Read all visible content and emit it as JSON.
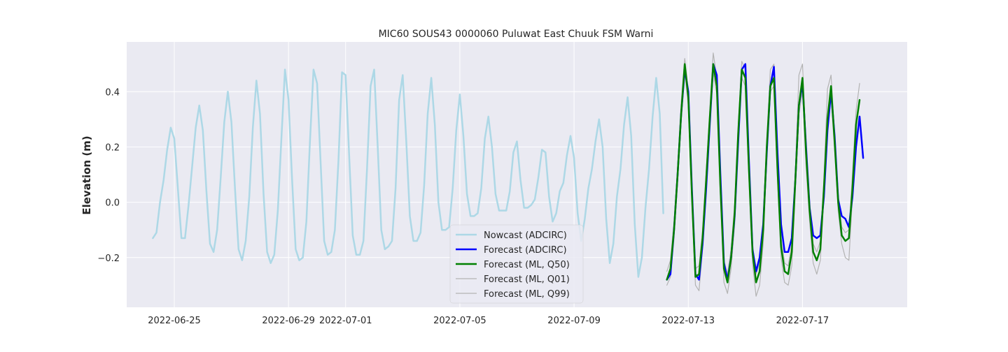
{
  "chart_data": {
    "type": "line",
    "title": "MIC60 SOUS43 0000060 Puluwat East Chuuk FSM Warni",
    "xlabel": "",
    "ylabel": "Elevation (m)",
    "x_unit": "date",
    "xlim": [
      "2022-06-23T08:00",
      "2022-07-20T16:00"
    ],
    "ylim": [
      -0.38,
      0.58
    ],
    "yticks": [
      -0.2,
      0.0,
      0.2,
      0.4
    ],
    "ytick_labels": [
      "−0.2",
      "0.0",
      "0.2",
      "0.4"
    ],
    "xticks": [
      "2022-06-25",
      "2022-06-29",
      "2022-07-01",
      "2022-07-05",
      "2022-07-09",
      "2022-07-13",
      "2022-07-17"
    ],
    "grid": true,
    "background": "#eaeaf2",
    "legend_position": "lower-center",
    "series": [
      {
        "name": "Nowcast (ADCIRC)",
        "color": "#add8e6",
        "width": 2.5,
        "x": [
          "2022-06-24T06:00",
          "2022-06-24T09:00",
          "2022-06-24T12:00",
          "2022-06-24T15:00",
          "2022-06-24T18:00",
          "2022-06-24T21:00",
          "2022-06-25T00:00",
          "2022-06-25T03:00",
          "2022-06-25T06:00",
          "2022-06-25T09:00",
          "2022-06-25T12:00",
          "2022-06-25T15:00",
          "2022-06-25T18:00",
          "2022-06-25T21:00",
          "2022-06-26T00:00",
          "2022-06-26T03:00",
          "2022-06-26T06:00",
          "2022-06-26T09:00",
          "2022-06-26T12:00",
          "2022-06-26T15:00",
          "2022-06-26T18:00",
          "2022-06-26T21:00",
          "2022-06-27T00:00",
          "2022-06-27T03:00",
          "2022-06-27T06:00",
          "2022-06-27T09:00",
          "2022-06-27T12:00",
          "2022-06-27T15:00",
          "2022-06-27T18:00",
          "2022-06-27T21:00",
          "2022-06-28T00:00",
          "2022-06-28T03:00",
          "2022-06-28T06:00",
          "2022-06-28T09:00",
          "2022-06-28T12:00",
          "2022-06-28T15:00",
          "2022-06-28T18:00",
          "2022-06-28T21:00",
          "2022-06-29T00:00",
          "2022-06-29T03:00",
          "2022-06-29T06:00",
          "2022-06-29T09:00",
          "2022-06-29T12:00",
          "2022-06-29T15:00",
          "2022-06-29T18:00",
          "2022-06-29T21:00",
          "2022-06-30T00:00",
          "2022-06-30T03:00",
          "2022-06-30T06:00",
          "2022-06-30T09:00",
          "2022-06-30T12:00",
          "2022-06-30T15:00",
          "2022-06-30T18:00",
          "2022-06-30T21:00",
          "2022-07-01T00:00",
          "2022-07-01T03:00",
          "2022-07-01T06:00",
          "2022-07-01T09:00",
          "2022-07-01T12:00",
          "2022-07-01T15:00",
          "2022-07-01T18:00",
          "2022-07-01T21:00",
          "2022-07-02T00:00",
          "2022-07-02T03:00",
          "2022-07-02T06:00",
          "2022-07-02T09:00",
          "2022-07-02T12:00",
          "2022-07-02T15:00",
          "2022-07-02T18:00",
          "2022-07-02T21:00",
          "2022-07-03T00:00",
          "2022-07-03T03:00",
          "2022-07-03T06:00",
          "2022-07-03T09:00",
          "2022-07-03T12:00",
          "2022-07-03T15:00",
          "2022-07-03T18:00",
          "2022-07-03T21:00",
          "2022-07-04T00:00",
          "2022-07-04T03:00",
          "2022-07-04T06:00",
          "2022-07-04T09:00",
          "2022-07-04T12:00",
          "2022-07-04T15:00",
          "2022-07-04T18:00",
          "2022-07-04T21:00",
          "2022-07-05T00:00",
          "2022-07-05T03:00",
          "2022-07-05T06:00",
          "2022-07-05T09:00",
          "2022-07-05T12:00",
          "2022-07-05T15:00",
          "2022-07-05T18:00",
          "2022-07-05T21:00",
          "2022-07-06T00:00",
          "2022-07-06T03:00",
          "2022-07-06T06:00",
          "2022-07-06T09:00",
          "2022-07-06T12:00",
          "2022-07-06T15:00",
          "2022-07-06T18:00",
          "2022-07-06T21:00",
          "2022-07-07T00:00",
          "2022-07-07T03:00",
          "2022-07-07T06:00",
          "2022-07-07T09:00",
          "2022-07-07T12:00",
          "2022-07-07T15:00",
          "2022-07-07T18:00",
          "2022-07-07T21:00",
          "2022-07-08T00:00",
          "2022-07-08T03:00",
          "2022-07-08T06:00",
          "2022-07-08T09:00",
          "2022-07-08T12:00",
          "2022-07-08T15:00",
          "2022-07-08T18:00",
          "2022-07-08T21:00",
          "2022-07-09T00:00",
          "2022-07-09T03:00",
          "2022-07-09T06:00",
          "2022-07-09T09:00",
          "2022-07-09T12:00",
          "2022-07-09T15:00",
          "2022-07-09T18:00",
          "2022-07-09T21:00",
          "2022-07-10T00:00",
          "2022-07-10T03:00",
          "2022-07-10T06:00",
          "2022-07-10T09:00",
          "2022-07-10T12:00",
          "2022-07-10T15:00",
          "2022-07-10T18:00",
          "2022-07-10T21:00",
          "2022-07-11T00:00",
          "2022-07-11T03:00",
          "2022-07-11T06:00",
          "2022-07-11T09:00",
          "2022-07-11T12:00",
          "2022-07-11T15:00",
          "2022-07-11T18:00",
          "2022-07-11T21:00",
          "2022-07-12T00:00",
          "2022-07-12T03:00"
        ],
        "y": [
          -0.13,
          -0.11,
          0.0,
          0.08,
          0.19,
          0.27,
          0.23,
          0.05,
          -0.13,
          -0.13,
          -0.01,
          0.13,
          0.27,
          0.35,
          0.26,
          0.04,
          -0.15,
          -0.18,
          -0.1,
          0.09,
          0.29,
          0.4,
          0.29,
          0.05,
          -0.17,
          -0.21,
          -0.14,
          0.02,
          0.27,
          0.44,
          0.32,
          0.03,
          -0.18,
          -0.22,
          -0.19,
          -0.03,
          0.23,
          0.48,
          0.37,
          0.08,
          -0.17,
          -0.21,
          -0.2,
          -0.07,
          0.22,
          0.48,
          0.43,
          0.14,
          -0.14,
          -0.19,
          -0.18,
          -0.1,
          0.15,
          0.47,
          0.46,
          0.17,
          -0.12,
          -0.19,
          -0.19,
          -0.14,
          0.12,
          0.42,
          0.48,
          0.2,
          -0.1,
          -0.17,
          -0.16,
          -0.14,
          0.05,
          0.37,
          0.46,
          0.22,
          -0.05,
          -0.14,
          -0.14,
          -0.11,
          0.06,
          0.32,
          0.45,
          0.28,
          0.0,
          -0.1,
          -0.1,
          -0.09,
          0.05,
          0.26,
          0.39,
          0.24,
          0.03,
          -0.05,
          -0.05,
          -0.04,
          0.05,
          0.23,
          0.31,
          0.2,
          0.03,
          -0.03,
          -0.03,
          -0.03,
          0.04,
          0.18,
          0.22,
          0.08,
          -0.02,
          -0.02,
          -0.01,
          0.01,
          0.09,
          0.19,
          0.18,
          0.02,
          -0.07,
          -0.04,
          0.04,
          0.07,
          0.17,
          0.24,
          0.16,
          -0.04,
          -0.14,
          -0.06,
          0.05,
          0.12,
          0.22,
          0.3,
          0.2,
          -0.06,
          -0.22,
          -0.15,
          0.02,
          0.12,
          0.28,
          0.38,
          0.24,
          -0.08,
          -0.27,
          -0.2,
          -0.02,
          0.12,
          0.31,
          0.45,
          0.32,
          -0.04
        ]
      },
      {
        "name": "Forecast (ADCIRC)",
        "color": "#0000ff",
        "width": 2.5,
        "x": [
          "2022-07-12T06:00",
          "2022-07-12T09:00",
          "2022-07-12T12:00",
          "2022-07-12T15:00",
          "2022-07-12T18:00",
          "2022-07-12T21:00",
          "2022-07-13T00:00",
          "2022-07-13T03:00",
          "2022-07-13T06:00",
          "2022-07-13T09:00",
          "2022-07-13T12:00",
          "2022-07-13T15:00",
          "2022-07-13T18:00",
          "2022-07-13T21:00",
          "2022-07-14T00:00",
          "2022-07-14T03:00",
          "2022-07-14T06:00",
          "2022-07-14T09:00",
          "2022-07-14T12:00",
          "2022-07-14T15:00",
          "2022-07-14T18:00",
          "2022-07-14T21:00",
          "2022-07-15T00:00",
          "2022-07-15T03:00",
          "2022-07-15T06:00",
          "2022-07-15T09:00",
          "2022-07-15T12:00",
          "2022-07-15T15:00",
          "2022-07-15T18:00",
          "2022-07-15T21:00",
          "2022-07-16T00:00",
          "2022-07-16T03:00",
          "2022-07-16T06:00",
          "2022-07-16T09:00",
          "2022-07-16T12:00",
          "2022-07-16T15:00",
          "2022-07-16T18:00",
          "2022-07-16T21:00",
          "2022-07-17T00:00",
          "2022-07-17T03:00",
          "2022-07-17T06:00",
          "2022-07-17T09:00",
          "2022-07-17T12:00",
          "2022-07-17T15:00",
          "2022-07-17T18:00",
          "2022-07-17T21:00",
          "2022-07-18T00:00",
          "2022-07-18T03:00",
          "2022-07-18T06:00",
          "2022-07-18T09:00",
          "2022-07-18T12:00",
          "2022-07-18T15:00",
          "2022-07-18T18:00",
          "2022-07-18T21:00",
          "2022-07-19T00:00",
          "2022-07-19T03:00"
        ],
        "y": [
          -0.28,
          -0.26,
          -0.1,
          0.1,
          0.32,
          0.48,
          0.4,
          0.05,
          -0.26,
          -0.28,
          -0.15,
          0.05,
          0.28,
          0.5,
          0.46,
          0.1,
          -0.22,
          -0.28,
          -0.2,
          -0.05,
          0.22,
          0.48,
          0.5,
          0.15,
          -0.17,
          -0.25,
          -0.2,
          -0.08,
          0.18,
          0.42,
          0.49,
          0.18,
          -0.08,
          -0.18,
          -0.18,
          -0.13,
          0.08,
          0.35,
          0.43,
          0.2,
          -0.02,
          -0.12,
          -0.13,
          -0.12,
          0.02,
          0.26,
          0.4,
          0.24,
          0.01,
          -0.05,
          -0.06,
          -0.09,
          0.02,
          0.2,
          0.31,
          0.16
        ]
      },
      {
        "name": "Forecast (ML, Q50)",
        "color": "#008000",
        "width": 2.5,
        "x": [
          "2022-07-12T06:00",
          "2022-07-12T09:00",
          "2022-07-12T12:00",
          "2022-07-12T15:00",
          "2022-07-12T18:00",
          "2022-07-12T21:00",
          "2022-07-13T00:00",
          "2022-07-13T03:00",
          "2022-07-13T06:00",
          "2022-07-13T09:00",
          "2022-07-13T12:00",
          "2022-07-13T15:00",
          "2022-07-13T18:00",
          "2022-07-13T21:00",
          "2022-07-14T00:00",
          "2022-07-14T03:00",
          "2022-07-14T06:00",
          "2022-07-14T09:00",
          "2022-07-14T12:00",
          "2022-07-14T15:00",
          "2022-07-14T18:00",
          "2022-07-14T21:00",
          "2022-07-15T00:00",
          "2022-07-15T03:00",
          "2022-07-15T06:00",
          "2022-07-15T09:00",
          "2022-07-15T12:00",
          "2022-07-15T15:00",
          "2022-07-15T18:00",
          "2022-07-15T21:00",
          "2022-07-16T00:00",
          "2022-07-16T03:00",
          "2022-07-16T06:00",
          "2022-07-16T09:00",
          "2022-07-16T12:00",
          "2022-07-16T15:00",
          "2022-07-16T18:00",
          "2022-07-16T21:00",
          "2022-07-17T00:00",
          "2022-07-17T03:00",
          "2022-07-17T06:00",
          "2022-07-17T09:00",
          "2022-07-17T12:00",
          "2022-07-17T15:00",
          "2022-07-17T18:00",
          "2022-07-17T21:00",
          "2022-07-18T00:00",
          "2022-07-18T03:00",
          "2022-07-18T06:00",
          "2022-07-18T09:00",
          "2022-07-18T12:00",
          "2022-07-18T15:00",
          "2022-07-18T18:00",
          "2022-07-18T21:00",
          "2022-07-19T00:00"
        ],
        "y": [
          -0.28,
          -0.24,
          -0.1,
          0.1,
          0.32,
          0.5,
          0.38,
          0.03,
          -0.27,
          -0.26,
          -0.13,
          0.08,
          0.3,
          0.5,
          0.42,
          0.06,
          -0.24,
          -0.29,
          -0.2,
          -0.04,
          0.25,
          0.48,
          0.45,
          0.12,
          -0.18,
          -0.29,
          -0.25,
          -0.1,
          0.2,
          0.42,
          0.45,
          0.12,
          -0.16,
          -0.25,
          -0.26,
          -0.18,
          0.08,
          0.35,
          0.45,
          0.18,
          -0.03,
          -0.18,
          -0.21,
          -0.17,
          0.05,
          0.3,
          0.42,
          0.22,
          0.0,
          -0.12,
          -0.14,
          -0.13,
          0.05,
          0.28,
          0.37
        ]
      },
      {
        "name": "Forecast (ML, Q01)",
        "color": "#b3b3b3",
        "width": 1.2,
        "x": [
          "2022-07-12T06:00",
          "2022-07-12T09:00",
          "2022-07-12T12:00",
          "2022-07-12T15:00",
          "2022-07-12T18:00",
          "2022-07-12T21:00",
          "2022-07-13T00:00",
          "2022-07-13T03:00",
          "2022-07-13T06:00",
          "2022-07-13T09:00",
          "2022-07-13T12:00",
          "2022-07-13T15:00",
          "2022-07-13T18:00",
          "2022-07-13T21:00",
          "2022-07-14T00:00",
          "2022-07-14T03:00",
          "2022-07-14T06:00",
          "2022-07-14T09:00",
          "2022-07-14T12:00",
          "2022-07-14T15:00",
          "2022-07-14T18:00",
          "2022-07-14T21:00",
          "2022-07-15T00:00",
          "2022-07-15T03:00",
          "2022-07-15T06:00",
          "2022-07-15T09:00",
          "2022-07-15T12:00",
          "2022-07-15T15:00",
          "2022-07-15T18:00",
          "2022-07-15T21:00",
          "2022-07-16T00:00",
          "2022-07-16T03:00",
          "2022-07-16T06:00",
          "2022-07-16T09:00",
          "2022-07-16T12:00",
          "2022-07-16T15:00",
          "2022-07-16T18:00",
          "2022-07-16T21:00",
          "2022-07-17T00:00",
          "2022-07-17T03:00",
          "2022-07-17T06:00",
          "2022-07-17T09:00",
          "2022-07-17T12:00",
          "2022-07-17T15:00",
          "2022-07-17T18:00",
          "2022-07-17T21:00",
          "2022-07-18T00:00",
          "2022-07-18T03:00",
          "2022-07-18T06:00",
          "2022-07-18T09:00",
          "2022-07-18T12:00",
          "2022-07-18T15:00",
          "2022-07-18T18:00",
          "2022-07-18T21:00",
          "2022-07-19T00:00"
        ],
        "y": [
          -0.3,
          -0.27,
          -0.13,
          0.07,
          0.29,
          0.47,
          0.35,
          0.0,
          -0.3,
          -0.32,
          -0.17,
          0.04,
          0.27,
          0.47,
          0.39,
          0.02,
          -0.29,
          -0.33,
          -0.24,
          -0.08,
          0.22,
          0.45,
          0.42,
          0.08,
          -0.22,
          -0.34,
          -0.3,
          -0.15,
          0.16,
          0.4,
          0.42,
          0.08,
          -0.2,
          -0.29,
          -0.3,
          -0.23,
          0.04,
          0.32,
          0.4,
          0.13,
          -0.07,
          -0.22,
          -0.26,
          -0.21,
          0.02,
          0.27,
          0.38,
          0.19,
          -0.03,
          -0.15,
          -0.2,
          -0.21,
          0.02,
          0.24,
          0.3
        ]
      },
      {
        "name": "Forecast (ML, Q99)",
        "color": "#b3b3b3",
        "width": 1.2,
        "x": [
          "2022-07-12T06:00",
          "2022-07-12T09:00",
          "2022-07-12T12:00",
          "2022-07-12T15:00",
          "2022-07-12T18:00",
          "2022-07-12T21:00",
          "2022-07-13T00:00",
          "2022-07-13T03:00",
          "2022-07-13T06:00",
          "2022-07-13T09:00",
          "2022-07-13T12:00",
          "2022-07-13T15:00",
          "2022-07-13T18:00",
          "2022-07-13T21:00",
          "2022-07-14T00:00",
          "2022-07-14T03:00",
          "2022-07-14T06:00",
          "2022-07-14T09:00",
          "2022-07-14T12:00",
          "2022-07-14T15:00",
          "2022-07-14T18:00",
          "2022-07-14T21:00",
          "2022-07-15T00:00",
          "2022-07-15T03:00",
          "2022-07-15T06:00",
          "2022-07-15T09:00",
          "2022-07-15T12:00",
          "2022-07-15T15:00",
          "2022-07-15T18:00",
          "2022-07-15T21:00",
          "2022-07-16T00:00",
          "2022-07-16T03:00",
          "2022-07-16T06:00",
          "2022-07-16T09:00",
          "2022-07-16T12:00",
          "2022-07-16T15:00",
          "2022-07-16T18:00",
          "2022-07-16T21:00",
          "2022-07-17T00:00",
          "2022-07-17T03:00",
          "2022-07-17T06:00",
          "2022-07-17T09:00",
          "2022-07-17T12:00",
          "2022-07-17T15:00",
          "2022-07-17T18:00",
          "2022-07-17T21:00",
          "2022-07-18T00:00",
          "2022-07-18T03:00",
          "2022-07-18T06:00",
          "2022-07-18T09:00",
          "2022-07-18T12:00",
          "2022-07-18T15:00",
          "2022-07-18T18:00",
          "2022-07-18T21:00",
          "2022-07-19T00:00"
        ],
        "y": [
          -0.25,
          -0.21,
          -0.07,
          0.13,
          0.36,
          0.52,
          0.41,
          0.06,
          -0.24,
          -0.23,
          -0.1,
          0.11,
          0.33,
          0.54,
          0.45,
          0.09,
          -0.21,
          -0.26,
          -0.17,
          -0.01,
          0.28,
          0.51,
          0.48,
          0.15,
          -0.15,
          -0.26,
          -0.22,
          -0.07,
          0.23,
          0.48,
          0.5,
          0.15,
          -0.13,
          -0.22,
          -0.23,
          -0.15,
          0.11,
          0.46,
          0.5,
          0.21,
          0.0,
          -0.15,
          -0.18,
          -0.14,
          0.08,
          0.41,
          0.46,
          0.25,
          0.03,
          -0.09,
          -0.11,
          -0.1,
          0.1,
          0.33,
          0.43
        ]
      }
    ]
  }
}
